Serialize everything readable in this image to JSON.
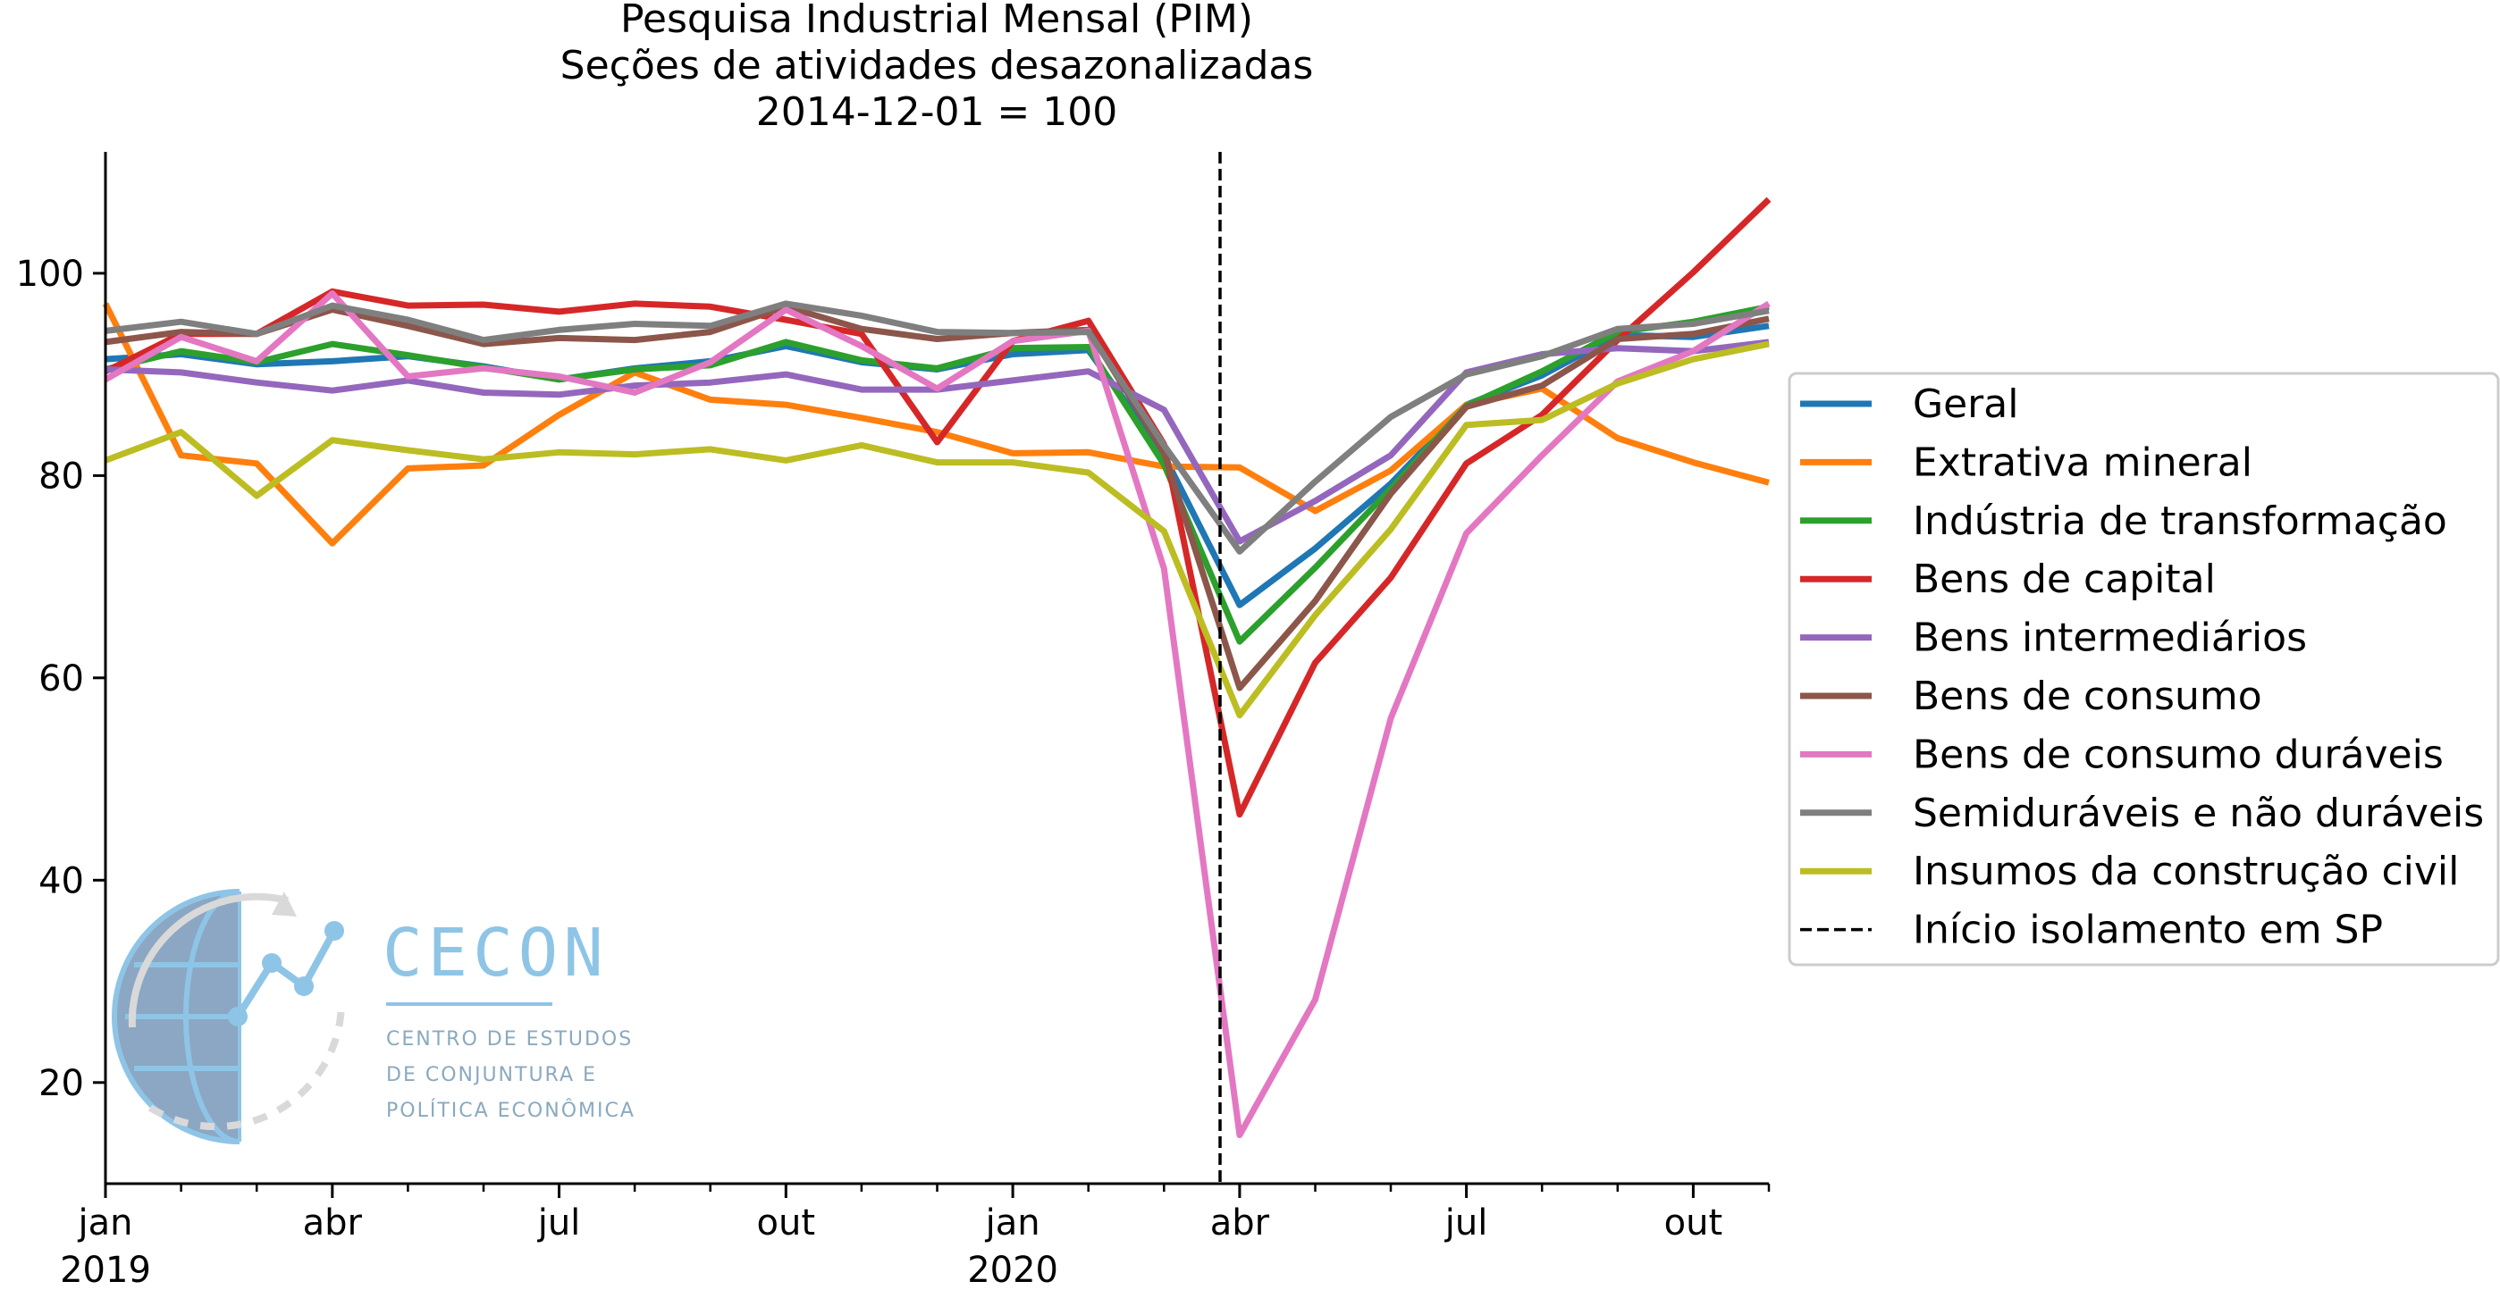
{
  "chart_data": {
    "type": "line",
    "title_lines": [
      "Pesquisa Industrial Mensal (PIM)",
      "Seções de atividades desazonalizadas",
      "2014-12-01 = 100"
    ],
    "xlabel": "",
    "ylabel": "",
    "x": [
      "2019-01",
      "2019-02",
      "2019-03",
      "2019-04",
      "2019-05",
      "2019-06",
      "2019-07",
      "2019-08",
      "2019-09",
      "2019-10",
      "2019-11",
      "2019-12",
      "2020-01",
      "2020-02",
      "2020-03",
      "2020-04",
      "2020-05",
      "2020-06",
      "2020-07",
      "2020-08",
      "2020-09",
      "2020-10",
      "2020-11"
    ],
    "xlim": [
      "2019-01",
      "2020-11"
    ],
    "ylim": [
      10,
      112
    ],
    "y_ticks": [
      20,
      40,
      60,
      80,
      100
    ],
    "x_major_ticks": [
      {
        "x": "2019-01",
        "label": "jan",
        "sub": "2019"
      },
      {
        "x": "2019-04",
        "label": "abr",
        "sub": ""
      },
      {
        "x": "2019-07",
        "label": "jul",
        "sub": ""
      },
      {
        "x": "2019-10",
        "label": "out",
        "sub": ""
      },
      {
        "x": "2020-01",
        "label": "jan",
        "sub": "2020"
      },
      {
        "x": "2020-04",
        "label": "abr",
        "sub": ""
      },
      {
        "x": "2020-07",
        "label": "jul",
        "sub": ""
      },
      {
        "x": "2020-10",
        "label": "out",
        "sub": ""
      }
    ],
    "grid": false,
    "legend_position": "right",
    "series": [
      {
        "name": "Geral",
        "color": "#1f77b4",
        "values": [
          91.5,
          92.0,
          91.0,
          91.3,
          91.8,
          90.8,
          89.5,
          90.6,
          91.3,
          92.8,
          91.2,
          90.5,
          92.0,
          92.4,
          82.0,
          67.2,
          72.8,
          79.2,
          87.0,
          89.9,
          93.9,
          93.7,
          94.8
        ]
      },
      {
        "name": "Extrativa mineral",
        "color": "#ff7f0e",
        "values": [
          97.0,
          82.0,
          81.2,
          73.3,
          80.7,
          81.0,
          86.0,
          90.2,
          87.5,
          87.0,
          85.7,
          84.3,
          82.2,
          82.3,
          80.9,
          80.8,
          76.5,
          80.5,
          87.0,
          88.6,
          83.7,
          81.3,
          79.3
        ]
      },
      {
        "name": "Indústria de transformação",
        "color": "#2ca02c",
        "values": [
          90.5,
          92.3,
          91.2,
          93.0,
          91.9,
          90.7,
          89.5,
          90.5,
          90.9,
          93.2,
          91.4,
          90.6,
          92.6,
          92.7,
          81.1,
          63.6,
          70.9,
          78.7,
          86.9,
          90.3,
          94.2,
          95.2,
          96.7
        ]
      },
      {
        "name": "Bens de capital",
        "color": "#d62728",
        "values": [
          90.3,
          94.0,
          94.0,
          98.2,
          96.8,
          96.9,
          96.2,
          97.0,
          96.7,
          95.4,
          94.0,
          83.3,
          93.3,
          95.3,
          83.1,
          46.5,
          61.5,
          69.9,
          81.2,
          86.0,
          93.4,
          100.1,
          107.3
        ]
      },
      {
        "name": "Bens intermediários",
        "color": "#9467bd",
        "values": [
          90.5,
          90.2,
          89.2,
          88.4,
          89.4,
          88.2,
          88.0,
          88.9,
          89.2,
          90.0,
          88.5,
          88.5,
          89.4,
          90.3,
          86.5,
          73.5,
          77.5,
          82.0,
          90.2,
          92.0,
          92.6,
          92.3,
          93.2
        ]
      },
      {
        "name": "Bens de consumo",
        "color": "#8c564b",
        "values": [
          93.2,
          94.2,
          94.0,
          96.4,
          94.8,
          93.0,
          93.6,
          93.4,
          94.2,
          96.7,
          94.5,
          93.5,
          94.1,
          94.4,
          82.3,
          59.0,
          67.6,
          78.2,
          86.8,
          88.9,
          93.5,
          94.0,
          95.5
        ]
      },
      {
        "name": "Bens de consumo duráveis",
        "color": "#e377c2",
        "values": [
          89.5,
          93.7,
          91.3,
          98.0,
          89.8,
          90.6,
          89.8,
          88.2,
          91.2,
          96.4,
          92.8,
          88.6,
          93.3,
          94.3,
          70.8,
          14.8,
          28.2,
          56.0,
          74.3,
          82.0,
          89.3,
          92.3,
          97.0
        ]
      },
      {
        "name": "Semiduráveis e não duráveis",
        "color": "#7f7f7f",
        "values": [
          94.3,
          95.2,
          94.0,
          96.8,
          95.4,
          93.4,
          94.4,
          95.0,
          94.8,
          97.0,
          95.8,
          94.2,
          94.1,
          94.2,
          83.0,
          72.5,
          79.4,
          85.8,
          90.0,
          91.8,
          94.5,
          95.0,
          96.3
        ]
      },
      {
        "name": "Insumos da construção civil",
        "color": "#bcbd22",
        "values": [
          81.5,
          84.3,
          78.0,
          83.5,
          82.5,
          81.6,
          82.3,
          82.1,
          82.6,
          81.5,
          83.0,
          81.3,
          81.3,
          80.3,
          74.5,
          56.3,
          66.2,
          74.7,
          85.0,
          85.5,
          89.1,
          91.5,
          93.0
        ]
      }
    ],
    "annotations": [
      {
        "type": "vline",
        "x": "2020-03-24",
        "style": "dashed",
        "color": "#000000",
        "label": "Início isolamento em SP"
      }
    ]
  },
  "logo": {
    "name": "CECON",
    "subtitle_lines": [
      "CENTRO DE ESTUDOS",
      "DE CONJUNTURA E",
      "POLÍTICA ECONÔMICA"
    ]
  }
}
